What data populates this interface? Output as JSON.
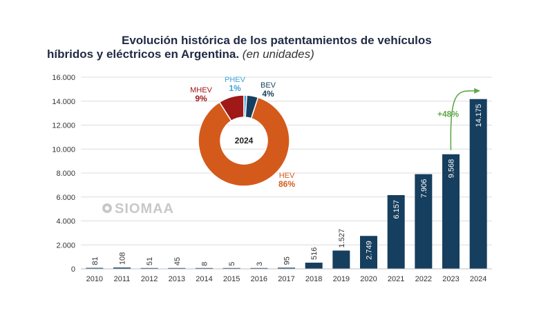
{
  "title": {
    "line1": "Evolución histórica de los patentamientos de vehículos",
    "line2": "híbridos y eléctricos en Argentina.",
    "unit": "(en unidades)"
  },
  "watermark": "SIOMAA",
  "growth_annotation": "+48%",
  "colors": {
    "bar": "#163e5e",
    "hev": "#d45a1c",
    "mhev": "#a01818",
    "phev": "#3fa2d8",
    "bev": "#163e5e",
    "growth": "#5fa84a"
  },
  "chart_data": [
    {
      "type": "bar",
      "categories": [
        "2010",
        "2011",
        "2012",
        "2013",
        "2014",
        "2015",
        "2016",
        "2017",
        "2018",
        "2019",
        "2020",
        "2021",
        "2022",
        "2023",
        "2024"
      ],
      "values": [
        81,
        108,
        51,
        45,
        8,
        5,
        3,
        95,
        516,
        1527,
        2749,
        6157,
        7906,
        9568,
        14175
      ],
      "value_labels": [
        "81",
        "108",
        "51",
        "45",
        "8",
        "5",
        "3",
        "95",
        "516",
        "1.527",
        "2.749",
        "6.157",
        "7.906",
        "9.568",
        "14.175"
      ],
      "ylim": [
        0,
        16000
      ],
      "yticks": [
        0,
        2000,
        4000,
        6000,
        8000,
        10000,
        12000,
        14000,
        16000
      ],
      "ytick_labels": [
        "0",
        "2.000",
        "4.000",
        "6.000",
        "8.000",
        "10.000",
        "12.000",
        "14.000",
        "16.000"
      ],
      "grid": true
    },
    {
      "type": "pie",
      "title": "2024",
      "slices": [
        {
          "name": "HEV",
          "value": 86,
          "label": "86%"
        },
        {
          "name": "MHEV",
          "value": 9,
          "label": "9%"
        },
        {
          "name": "PHEV",
          "value": 1,
          "label": "1%"
        },
        {
          "name": "BEV",
          "value": 4,
          "label": "4%"
        }
      ]
    }
  ]
}
